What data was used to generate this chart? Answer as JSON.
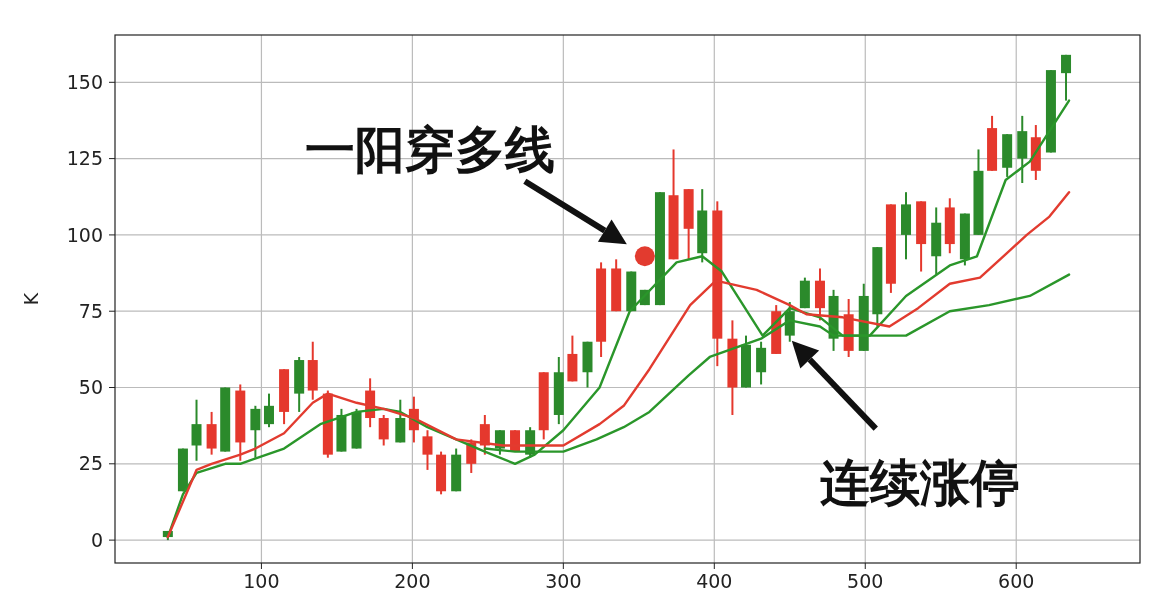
{
  "chart_data": {
    "type": "candlestick",
    "ylabel": "K",
    "xlim": [
      3,
      682
    ],
    "ylim": [
      -7.5,
      165.5
    ],
    "xticks": [
      100,
      200,
      300,
      400,
      500,
      600
    ],
    "yticks": [
      0,
      25,
      50,
      75,
      100,
      125,
      150
    ],
    "grid": true,
    "x": [
      38,
      48,
      57,
      67,
      76,
      86,
      96,
      105,
      115,
      125,
      134,
      144,
      153,
      163,
      172,
      181,
      192,
      201,
      210,
      219,
      229,
      239,
      248,
      258,
      268,
      278,
      287,
      297,
      306,
      316,
      325,
      335,
      345,
      354,
      364,
      373,
      383,
      392,
      402,
      412,
      421,
      431,
      441,
      450,
      460,
      470,
      479,
      489,
      499,
      508,
      517,
      527,
      537,
      547,
      556,
      566,
      575,
      584,
      594,
      604,
      613,
      623,
      633
    ],
    "ohlc": [
      [
        1,
        3,
        0,
        3
      ],
      [
        16,
        30,
        16,
        30
      ],
      [
        31,
        46,
        26,
        38
      ],
      [
        38,
        42,
        28,
        30
      ],
      [
        29,
        50,
        29,
        50
      ],
      [
        49,
        51,
        26,
        32
      ],
      [
        36,
        44,
        27,
        43
      ],
      [
        38,
        48,
        37,
        44
      ],
      [
        56,
        56,
        38,
        42
      ],
      [
        48,
        60,
        42,
        59
      ],
      [
        59,
        65,
        46,
        49
      ],
      [
        48,
        49,
        27,
        28
      ],
      [
        29,
        43,
        29,
        41
      ],
      [
        30,
        43,
        30,
        42
      ],
      [
        49,
        53,
        37,
        40
      ],
      [
        40,
        41,
        31,
        33
      ],
      [
        32,
        46,
        32,
        40
      ],
      [
        43,
        47,
        32,
        36
      ],
      [
        34,
        36,
        23,
        28
      ],
      [
        28,
        29,
        15,
        16
      ],
      [
        16,
        30,
        16,
        28
      ],
      [
        32,
        33,
        22,
        25
      ],
      [
        38,
        41,
        28,
        31
      ],
      [
        30,
        36,
        28,
        36
      ],
      [
        36,
        36,
        29,
        29
      ],
      [
        28,
        37,
        27,
        36
      ],
      [
        55,
        55,
        33,
        36
      ],
      [
        41,
        60,
        38,
        55
      ],
      [
        61,
        67,
        52,
        52
      ],
      [
        55,
        65,
        50,
        65
      ],
      [
        89,
        91,
        60,
        65
      ],
      [
        89,
        92,
        75,
        75
      ],
      [
        75,
        88,
        75,
        88
      ],
      [
        77,
        82,
        77,
        82
      ],
      [
        77,
        114,
        77,
        114
      ],
      [
        113,
        128,
        92,
        92
      ],
      [
        115,
        115,
        92,
        102
      ],
      [
        94,
        115,
        91,
        108
      ],
      [
        108,
        111,
        57,
        66
      ],
      [
        66,
        72,
        41,
        50
      ],
      [
        50,
        67,
        50,
        64
      ],
      [
        55,
        65,
        51,
        63
      ],
      [
        75,
        77,
        61,
        61
      ],
      [
        67,
        78,
        65,
        75
      ],
      [
        76,
        86,
        76,
        85
      ],
      [
        85,
        89,
        72,
        76
      ],
      [
        66,
        82,
        62,
        80
      ],
      [
        74,
        79,
        60,
        62
      ],
      [
        62,
        84,
        62,
        80
      ],
      [
        74,
        96,
        70,
        96
      ],
      [
        110,
        110,
        81,
        84
      ],
      [
        100,
        114,
        92,
        110
      ],
      [
        111,
        111,
        88,
        97
      ],
      [
        93,
        109,
        87,
        104
      ],
      [
        109,
        112,
        94,
        97
      ],
      [
        92,
        107,
        90,
        107
      ],
      [
        100,
        128,
        100,
        121
      ],
      [
        135,
        139,
        121,
        121
      ],
      [
        122,
        133,
        119,
        133
      ],
      [
        125,
        139,
        117,
        134
      ],
      [
        132,
        136,
        118,
        121
      ],
      [
        127,
        154,
        127,
        154
      ],
      [
        153,
        159,
        144,
        159
      ]
    ],
    "colors": [
      "#2b8a2b",
      "#2b8a2b",
      "#2b8a2b",
      "#e5382d",
      "#2b8a2b",
      "#e5382d",
      "#2b8a2b",
      "#2b8a2b",
      "#e5382d",
      "#2b8a2b",
      "#e5382d",
      "#e5382d",
      "#2b8a2b",
      "#2b8a2b",
      "#e5382d",
      "#e5382d",
      "#2b8a2b",
      "#e5382d",
      "#e5382d",
      "#e5382d",
      "#2b8a2b",
      "#e5382d",
      "#e5382d",
      "#2b8a2b",
      "#e5382d",
      "#2b8a2b",
      "#e5382d",
      "#2b8a2b",
      "#e5382d",
      "#2b8a2b",
      "#e5382d",
      "#e5382d",
      "#2b8a2b",
      "#2b8a2b",
      "#2b8a2b",
      "#e5382d",
      "#e5382d",
      "#2b8a2b",
      "#e5382d",
      "#e5382d",
      "#2b8a2b",
      "#2b8a2b",
      "#e5382d",
      "#2b8a2b",
      "#2b8a2b",
      "#e5382d",
      "#2b8a2b",
      "#e5382d",
      "#2b8a2b",
      "#2b8a2b",
      "#e5382d",
      "#2b8a2b",
      "#e5382d",
      "#2b8a2b",
      "#e5382d",
      "#2b8a2b",
      "#2b8a2b",
      "#e5382d",
      "#2b8a2b",
      "#2b8a2b",
      "#e5382d",
      "#2b8a2b",
      "#2b8a2b"
    ],
    "series": [
      {
        "type": "line",
        "color": "#2a962a",
        "x": [
          38,
          48,
          57,
          76,
          86,
          115,
          139,
          163,
          181,
          192,
          210,
          229,
          248,
          268,
          281,
          300,
          324,
          344,
          375,
          392,
          405,
          432,
          450,
          470,
          485,
          503,
          527,
          556,
          574,
          593,
          609,
          635
        ],
        "values": [
          1,
          15,
          22,
          25,
          25,
          30,
          38,
          42,
          43,
          42,
          37,
          33,
          29,
          25,
          28,
          36,
          50,
          75,
          91,
          93,
          88,
          67,
          76,
          73,
          67,
          67,
          80,
          90,
          93,
          118,
          124,
          144
        ]
      },
      {
        "type": "line",
        "color": "#e23b2f",
        "x": [
          38,
          57,
          67,
          86,
          96,
          115,
          134,
          144,
          163,
          181,
          201,
          229,
          260,
          300,
          324,
          340,
          357,
          384,
          401,
          428,
          450,
          461,
          485,
          516,
          535,
          556,
          576,
          596,
          607,
          622,
          635
        ],
        "values": [
          1,
          23,
          25,
          28,
          30,
          35,
          45,
          48,
          45,
          43,
          40,
          33,
          31,
          31,
          38,
          44,
          56,
          77,
          85,
          82,
          77,
          74,
          73,
          70,
          76,
          84,
          86,
          95,
          100,
          106,
          114
        ]
      },
      {
        "type": "line",
        "color": "#2a962a",
        "x": [
          248,
          268,
          300,
          322,
          340,
          357,
          383,
          397,
          431,
          450,
          470,
          479,
          505,
          527,
          556,
          582,
          609,
          635
        ],
        "values": [
          30,
          29,
          29,
          33,
          37,
          42,
          54,
          60,
          66,
          72,
          70,
          67,
          67,
          67,
          75,
          77,
          80,
          87
        ]
      },
      {
        "type": "scatter",
        "color": "#e23b2f",
        "marker": "circle",
        "x": [
          354
        ],
        "values": [
          93
        ]
      }
    ],
    "annotations": [
      {
        "text": "一阳穿多线",
        "x": 354,
        "y": 93
      },
      {
        "text": "连续涨停",
        "x": 450,
        "y": 66
      }
    ]
  }
}
